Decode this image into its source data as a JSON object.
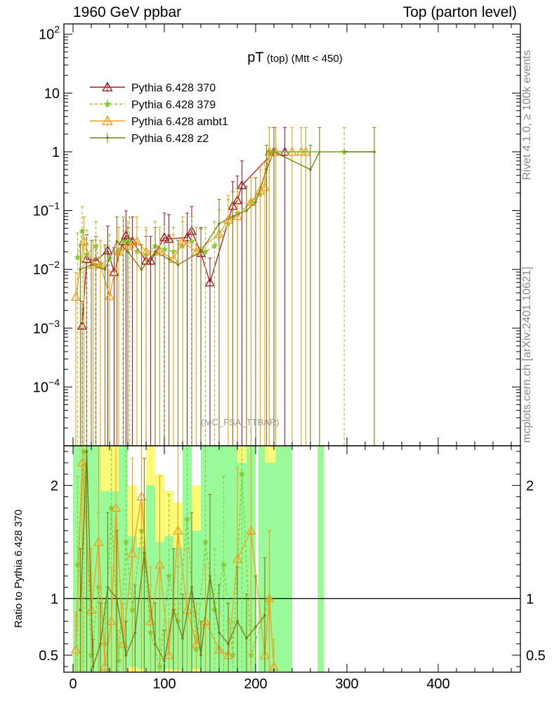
{
  "header": {
    "left": "1960 GeV ppbar",
    "right": "Top (parton level)"
  },
  "side_labels": {
    "top": "Rivet 4.1.0, ≥ 100k events",
    "bottom": "mcplots.cern.ch [arXiv:2401.10621]"
  },
  "watermark": "(MC_FSA_TTBAR)",
  "chart_data": [
    {
      "type": "line",
      "title": "pT (top) (Mtt < 450)",
      "title_main": "pT",
      "title_sub": "(top) (Mtt < 450)",
      "yscale": "log",
      "ylim": [
        1e-05,
        150
      ],
      "xlim": [
        -10,
        490
      ],
      "y_ticks": [
        {
          "value": 0.0001,
          "label": "10",
          "exp": "−4"
        },
        {
          "value": 0.001,
          "label": "10",
          "exp": "−3"
        },
        {
          "value": 0.01,
          "label": "10",
          "exp": "−2"
        },
        {
          "value": 0.1,
          "label": "10",
          "exp": "−1"
        },
        {
          "value": 1,
          "label": "1",
          "exp": ""
        },
        {
          "value": 10,
          "label": "10",
          "exp": ""
        },
        {
          "value": 100,
          "label": "10",
          "exp": "2"
        }
      ],
      "legend_position": "top-left",
      "series": [
        {
          "name": "Pythia 6.428 370",
          "color": "#a31a2a",
          "marker": "triangle-open",
          "dash": "solid",
          "points": [
            [
              10,
              0.0011
            ],
            [
              15,
              0.015
            ],
            [
              25,
              0.014
            ],
            [
              38,
              0.021
            ],
            [
              45,
              0.009
            ],
            [
              55,
              0.03
            ],
            [
              58,
              0.038
            ],
            [
              65,
              0.03
            ],
            [
              80,
              0.014
            ],
            [
              85,
              0.014
            ],
            [
              100,
              0.035
            ],
            [
              105,
              0.033
            ],
            [
              125,
              0.035
            ],
            [
              130,
              0.045
            ],
            [
              140,
              0.019
            ],
            [
              150,
              0.006
            ],
            [
              175,
              0.12
            ],
            [
              180,
              0.15
            ],
            [
              185,
              0.27
            ],
            [
              220,
              1.0
            ],
            [
              232,
              1.0
            ]
          ]
        },
        {
          "name": "Pythia 6.428 379",
          "color": "#8ac832",
          "marker": "star",
          "dash": "dashed",
          "points": [
            [
              5,
              0.016
            ],
            [
              10,
              0.045
            ],
            [
              15,
              0.018
            ],
            [
              25,
              0.025
            ],
            [
              30,
              0.012
            ],
            [
              40,
              0.015
            ],
            [
              50,
              0.02
            ],
            [
              55,
              0.03
            ],
            [
              62,
              0.03
            ],
            [
              70,
              0.02
            ],
            [
              80,
              0.018
            ],
            [
              90,
              0.025
            ],
            [
              100,
              0.022
            ],
            [
              110,
              0.02
            ],
            [
              120,
              0.025
            ],
            [
              130,
              0.03
            ],
            [
              145,
              0.02
            ],
            [
              155,
              0.025
            ],
            [
              170,
              0.06
            ],
            [
              180,
              0.09
            ],
            [
              195,
              0.14
            ],
            [
              205,
              0.19
            ],
            [
              215,
              1.0
            ],
            [
              297,
              1.0
            ]
          ]
        },
        {
          "name": "Pythia 6.428 ambt1",
          "color": "#f0a01e",
          "marker": "triangle-open",
          "dash": "solid",
          "points": [
            [
              3,
              0.0034
            ],
            [
              12,
              0.03
            ],
            [
              22,
              0.012
            ],
            [
              30,
              0.012
            ],
            [
              40,
              0.0035
            ],
            [
              50,
              0.02
            ],
            [
              60,
              0.025
            ],
            [
              70,
              0.03
            ],
            [
              80,
              0.02
            ],
            [
              95,
              0.02
            ],
            [
              110,
              0.015
            ],
            [
              120,
              0.03
            ],
            [
              135,
              0.02
            ],
            [
              160,
              0.04
            ],
            [
              170,
              0.07
            ],
            [
              180,
              0.08
            ],
            [
              195,
              0.14
            ],
            [
              205,
              0.22
            ],
            [
              210,
              0.25
            ],
            [
              215,
              1.0
            ],
            [
              222,
              1.0
            ],
            [
              240,
              1.0
            ],
            [
              250,
              1.0
            ],
            [
              255,
              1.0
            ]
          ]
        },
        {
          "name": "Pythia 6.428 z2",
          "color": "#7a7a14",
          "marker": "dot",
          "dash": "solid",
          "points": [
            [
              8,
              0.01
            ],
            [
              20,
              0.012
            ],
            [
              35,
              0.01
            ],
            [
              48,
              0.03
            ],
            [
              60,
              0.02
            ],
            [
              75,
              0.01
            ],
            [
              90,
              0.02
            ],
            [
              105,
              0.015
            ],
            [
              115,
              0.012
            ],
            [
              140,
              0.02
            ],
            [
              160,
              0.06
            ],
            [
              175,
              0.08
            ],
            [
              190,
              0.1
            ],
            [
              200,
              0.14
            ],
            [
              212,
              0.5
            ],
            [
              220,
              1.0
            ],
            [
              260,
              0.5
            ],
            [
              270,
              1.0
            ],
            [
              330,
              1.0
            ]
          ]
        }
      ]
    },
    {
      "type": "line",
      "title": "",
      "ylabel": "Ratio to Pythia 6.428 370",
      "ylim": [
        0.35,
        2.35
      ],
      "xlim": [
        -10,
        490
      ],
      "y_ticks": [
        0.5,
        1,
        2
      ],
      "x_ticks": [
        0,
        100,
        200,
        300,
        400
      ],
      "reference_line": 1,
      "band_colors": {
        "inner": "#98fa98",
        "outer": "#fafa78"
      },
      "bands": [
        {
          "x0": 0,
          "x1": 10,
          "g_lo": 0.35,
          "g_hi": 2.35,
          "y_lo": 0.35,
          "y_hi": 2.35
        },
        {
          "x0": 10,
          "x1": 30,
          "g_lo": 0.35,
          "g_hi": 2.35,
          "y_lo": 0.35,
          "y_hi": 2.35
        },
        {
          "x0": 30,
          "x1": 50,
          "g_lo": 0.35,
          "g_hi": 1.95,
          "y_lo": 0.35,
          "y_hi": 2.35
        },
        {
          "x0": 50,
          "x1": 60,
          "g_lo": 0.35,
          "g_hi": 2.35,
          "y_lo": 0.35,
          "y_hi": 2.35
        },
        {
          "x0": 60,
          "x1": 70,
          "g_lo": 0.4,
          "g_hi": 1.55,
          "y_lo": 0.35,
          "y_hi": 2.0
        },
        {
          "x0": 70,
          "x1": 80,
          "g_lo": 0.38,
          "g_hi": 1.45,
          "y_lo": 0.35,
          "y_hi": 1.85
        },
        {
          "x0": 80,
          "x1": 90,
          "g_lo": 0.35,
          "g_hi": 2.0,
          "y_lo": 0.35,
          "y_hi": 2.35
        },
        {
          "x0": 90,
          "x1": 100,
          "g_lo": 0.35,
          "g_hi": 1.5,
          "y_lo": 0.35,
          "y_hi": 2.1
        },
        {
          "x0": 100,
          "x1": 110,
          "g_lo": 0.38,
          "g_hi": 1.55,
          "y_lo": 0.35,
          "y_hi": 1.95
        },
        {
          "x0": 110,
          "x1": 120,
          "g_lo": 0.37,
          "g_hi": 1.45,
          "y_lo": 0.35,
          "y_hi": 1.85
        },
        {
          "x0": 120,
          "x1": 130,
          "g_lo": 0.35,
          "g_hi": 2.35,
          "y_lo": 0.35,
          "y_hi": 2.35
        },
        {
          "x0": 130,
          "x1": 140,
          "g_lo": 0.38,
          "g_hi": 1.6,
          "y_lo": 0.35,
          "y_hi": 2.0
        },
        {
          "x0": 140,
          "x1": 150,
          "g_lo": 0.35,
          "g_hi": 2.35,
          "y_lo": 0.35,
          "y_hi": 2.35
        },
        {
          "x0": 150,
          "x1": 160,
          "g_lo": 0.35,
          "g_hi": 2.35,
          "y_lo": 0.35,
          "y_hi": 2.35
        },
        {
          "x0": 160,
          "x1": 170,
          "g_lo": 0.35,
          "g_hi": 2.35,
          "y_lo": 0.35,
          "y_hi": 2.35
        },
        {
          "x0": 170,
          "x1": 180,
          "g_lo": 0.35,
          "g_hi": 2.35,
          "y_lo": 0.35,
          "y_hi": 2.35
        },
        {
          "x0": 180,
          "x1": 190,
          "g_lo": 0.35,
          "g_hi": 2.2,
          "y_lo": 0.35,
          "y_hi": 2.35
        },
        {
          "x0": 190,
          "x1": 200,
          "g_lo": 0.35,
          "g_hi": 2.35,
          "y_lo": 0.35,
          "y_hi": 2.35
        },
        {
          "x0": 203,
          "x1": 210,
          "g_lo": 0.35,
          "g_hi": 2.35,
          "y_lo": 0.35,
          "y_hi": 2.35
        },
        {
          "x0": 210,
          "x1": 222,
          "g_lo": 0.35,
          "g_hi": 2.2,
          "y_lo": 0.35,
          "y_hi": 2.35
        },
        {
          "x0": 222,
          "x1": 240,
          "g_lo": 0.35,
          "g_hi": 2.35,
          "y_lo": 0.35,
          "y_hi": 2.35
        },
        {
          "x0": 268,
          "x1": 275,
          "g_lo": 0.35,
          "g_hi": 2.35,
          "y_lo": 0.35,
          "y_hi": 2.35
        }
      ],
      "series": [
        {
          "name": "Pythia 6.428 379",
          "color": "#8ac832",
          "marker": "star",
          "dash": "dashed",
          "points": [
            [
              5,
              1.3
            ],
            [
              12,
              2.3
            ],
            [
              20,
              0.5
            ],
            [
              28,
              1.1
            ],
            [
              35,
              0.6
            ],
            [
              42,
              1.8
            ],
            [
              50,
              0.45
            ],
            [
              58,
              1.5
            ],
            [
              65,
              0.9
            ],
            [
              75,
              1.6
            ],
            [
              85,
              0.7
            ],
            [
              95,
              0.4
            ],
            [
              105,
              1.2
            ],
            [
              115,
              0.8
            ],
            [
              125,
              1.7
            ],
            [
              135,
              0.55
            ],
            [
              145,
              1.5
            ],
            [
              155,
              0.9
            ],
            [
              165,
              1.3
            ],
            [
              175,
              0.5
            ],
            [
              185,
              2.1
            ],
            [
              195,
              0.5
            ],
            [
              215,
              1.0
            ]
          ]
        },
        {
          "name": "Pythia 6.428 ambt1",
          "color": "#f0a01e",
          "marker": "triangle-open",
          "dash": "solid",
          "points": [
            [
              3,
              0.55
            ],
            [
              10,
              2.2
            ],
            [
              20,
              0.9
            ],
            [
              28,
              1.5
            ],
            [
              35,
              0.4
            ],
            [
              42,
              0.8
            ],
            [
              47,
              1.8
            ],
            [
              55,
              0.6
            ],
            [
              65,
              1.4
            ],
            [
              75,
              1.9
            ],
            [
              85,
              0.8
            ],
            [
              95,
              1.3
            ],
            [
              105,
              0.5
            ],
            [
              115,
              1.6
            ],
            [
              125,
              0.9
            ],
            [
              135,
              0.6
            ],
            [
              145,
              0.8
            ],
            [
              160,
              0.55
            ],
            [
              170,
              0.5
            ],
            [
              180,
              1.35
            ],
            [
              195,
              1.6
            ],
            [
              210,
              0.5
            ],
            [
              215,
              1.0
            ],
            [
              220,
              0.4
            ]
          ]
        },
        {
          "name": "Pythia 6.428 z2",
          "color": "#7a7a14",
          "marker": "dot",
          "dash": "solid",
          "points": [
            [
              8,
              0.9
            ],
            [
              15,
              2.3
            ],
            [
              22,
              0.4
            ],
            [
              30,
              0.6
            ],
            [
              38,
              1.1
            ],
            [
              48,
              1.0
            ],
            [
              58,
              0.5
            ],
            [
              68,
              0.7
            ],
            [
              78,
              1.4
            ],
            [
              90,
              0.6
            ],
            [
              100,
              0.45
            ],
            [
              110,
              0.9
            ],
            [
              120,
              0.65
            ],
            [
              130,
              1.1
            ],
            [
              140,
              0.5
            ],
            [
              150,
              1.2
            ],
            [
              160,
              0.7
            ],
            [
              170,
              0.6
            ],
            [
              180,
              0.8
            ],
            [
              190,
              0.65
            ],
            [
              200,
              0.75
            ],
            [
              210,
              0.85
            ]
          ]
        }
      ]
    }
  ]
}
